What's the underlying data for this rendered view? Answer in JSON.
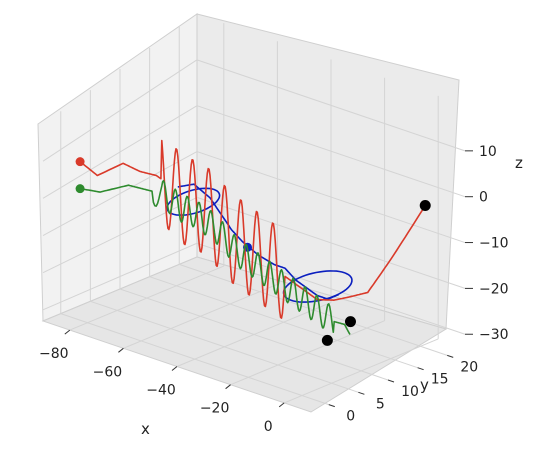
{
  "chart_data": {
    "type": "line",
    "projection": "3d",
    "xlabel": "x",
    "ylabel": "y",
    "zlabel": "z",
    "x_ticks": [
      -80,
      -60,
      -40,
      -20,
      0
    ],
    "y_ticks": [
      0,
      5,
      10,
      15,
      20
    ],
    "z_ticks": [
      10,
      0,
      -10,
      -20,
      -30
    ],
    "xlim": [
      -90,
      10
    ],
    "ylim": [
      -3,
      23
    ],
    "zlim": [
      -33,
      20
    ],
    "grid": true,
    "series": [
      {
        "color": "#0b1fbf",
        "start": [
          -38,
          8,
          -10
        ],
        "points": [
          [
            -64,
            8,
            -1
          ],
          [
            -58,
            8,
            1
          ],
          [
            -52,
            8,
            -1
          ],
          [
            -48,
            8,
            -4
          ],
          [
            -44,
            8,
            -7
          ],
          [
            -40,
            8,
            -9
          ],
          [
            -34,
            8,
            -11
          ],
          [
            -28,
            8,
            -12
          ],
          [
            -24,
            8,
            -12
          ],
          [
            -20,
            8,
            -14
          ],
          [
            -16,
            8,
            -15
          ],
          [
            -12,
            8,
            -16
          ],
          [
            -8,
            8,
            -16
          ],
          [
            -4,
            8,
            -14
          ]
        ],
        "loops": [
          [
            -56,
            7,
            -2,
            6,
            3.5
          ],
          [
            -14,
            9,
            -15,
            8,
            4.5
          ]
        ]
      },
      {
        "color": "#d93a2a",
        "start": [
          -85,
          1,
          7
        ],
        "points": [
          [
            -85,
            1,
            7
          ],
          [
            -83,
            3,
            2
          ],
          [
            -80,
            6,
            3
          ],
          [
            -76,
            7,
            1
          ],
          [
            -72,
            8,
            0
          ],
          [
            -68,
            8,
            -1
          ],
          [
            -64,
            8,
            -3
          ],
          [
            -60,
            8,
            -4
          ],
          [
            -56,
            8,
            -4
          ],
          [
            -52,
            8,
            -5
          ],
          [
            -48,
            8,
            -7
          ],
          [
            -44,
            8,
            -9
          ],
          [
            -40,
            8,
            -10
          ],
          [
            -36,
            8,
            -11
          ],
          [
            -32,
            8,
            -12
          ],
          [
            -28,
            8,
            -13
          ],
          [
            -24,
            8,
            -14
          ],
          [
            -20,
            8,
            -15
          ],
          [
            -16,
            8,
            -16
          ],
          [
            -12,
            8,
            -17
          ],
          [
            -8,
            9,
            -17
          ],
          [
            -4,
            10,
            -16
          ],
          [
            -2,
            12,
            -16
          ],
          [
            0,
            15,
            -10
          ],
          [
            4,
            19,
            0
          ]
        ],
        "wiggle_amp": 11,
        "wiggle_period": 3,
        "wiggle_range": [
          -70,
          -24
        ]
      },
      {
        "color": "#2e8b2e",
        "start": [
          -85,
          1,
          0
        ],
        "points": [
          [
            -85,
            1,
            0
          ],
          [
            -82,
            3,
            -2
          ],
          [
            -78,
            6,
            -2
          ],
          [
            -74,
            7,
            -3
          ],
          [
            -70,
            8,
            -4
          ],
          [
            -66,
            8,
            -5
          ],
          [
            -62,
            8,
            -6
          ],
          [
            -58,
            8,
            -6
          ],
          [
            -54,
            8,
            -7
          ],
          [
            -50,
            8,
            -8
          ],
          [
            -46,
            8,
            -10
          ],
          [
            -42,
            8,
            -12
          ],
          [
            -38,
            8,
            -13
          ],
          [
            -34,
            8,
            -14
          ],
          [
            -30,
            8,
            -15
          ],
          [
            -26,
            8,
            -16
          ],
          [
            -22,
            8,
            -17
          ],
          [
            -18,
            8,
            -18
          ],
          [
            -14,
            8,
            -19
          ],
          [
            -10,
            8,
            -20
          ],
          [
            -6,
            8,
            -21
          ],
          [
            -4,
            9,
            -22
          ],
          [
            -2,
            9,
            -24
          ]
        ],
        "wiggle_amp": 3.5,
        "wiggle_period": 2.2,
        "wiggle_range": [
          -72,
          -6
        ]
      }
    ],
    "markers": [
      {
        "color": "#000000",
        "point": [
          4,
          19,
          0
        ]
      },
      {
        "color": "#000000",
        "point": [
          -4,
          10,
          -22
        ]
      },
      {
        "color": "#000000",
        "point": [
          -6,
          7,
          -25
        ]
      }
    ]
  }
}
